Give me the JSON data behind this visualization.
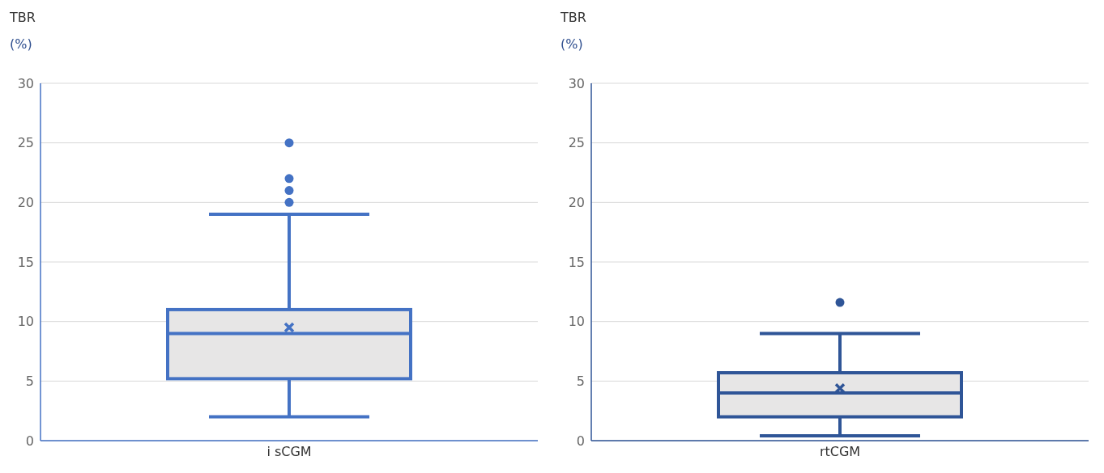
{
  "chart_data": [
    {
      "type": "box",
      "ylabel": "TBR (%)",
      "categories": [
        "i sCGM"
      ],
      "color": "#4472c4",
      "ylim": [
        0,
        30
      ],
      "yticks": [
        0,
        5,
        10,
        15,
        20,
        25,
        30
      ],
      "grid": "y",
      "boxes": [
        {
          "low": 2,
          "q1": 5.2,
          "median": 9,
          "q3": 11,
          "high": 19,
          "mean": 9.5,
          "outliers": [
            20,
            21,
            22,
            25
          ]
        }
      ]
    },
    {
      "type": "box",
      "ylabel": "TBR (%)",
      "categories": [
        "rtCGM"
      ],
      "color": "#2f5597",
      "ylim": [
        0,
        30
      ],
      "yticks": [
        0,
        5,
        10,
        15,
        20,
        25,
        30
      ],
      "grid": "y",
      "boxes": [
        {
          "low": 0.4,
          "q1": 2,
          "median": 4,
          "q3": 5.7,
          "high": 9,
          "mean": 4.4,
          "outliers": [
            11.6
          ]
        }
      ]
    }
  ]
}
